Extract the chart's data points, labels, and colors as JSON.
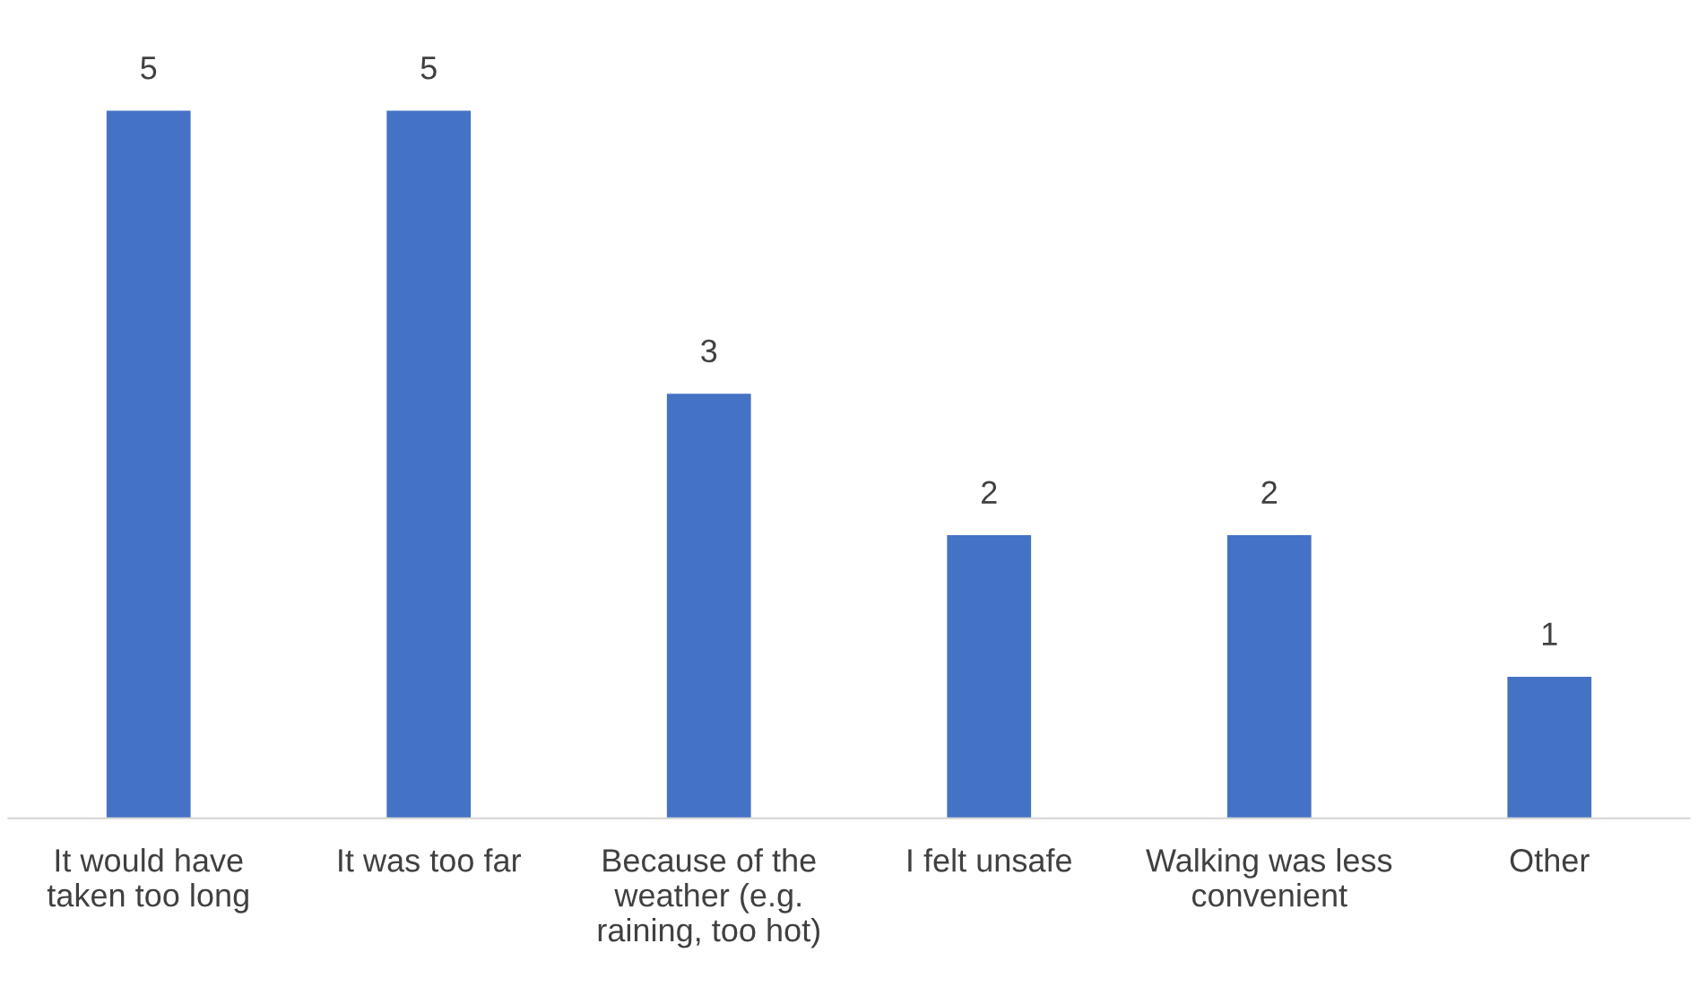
{
  "chart_data": {
    "type": "bar",
    "categories": [
      "It would have taken too long",
      "It was too far",
      "Because of the weather (e.g. raining, too hot)",
      "I felt unsafe",
      "Walking was less convenient",
      "Other"
    ],
    "values": [
      5,
      5,
      3,
      2,
      2,
      1
    ],
    "color": "#4472c4",
    "data_labels": true
  }
}
